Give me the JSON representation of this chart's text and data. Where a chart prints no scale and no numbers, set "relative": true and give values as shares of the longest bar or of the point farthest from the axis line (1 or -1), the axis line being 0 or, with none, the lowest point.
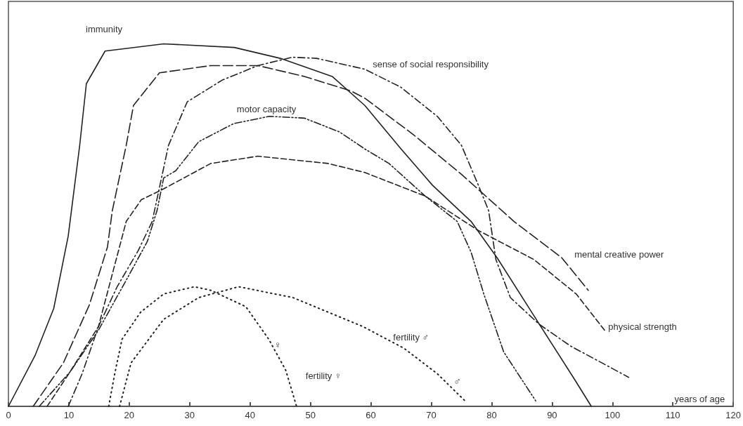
{
  "chart_data": {
    "type": "line",
    "relative": true,
    "xlabel": "years of age",
    "xlim": [
      0,
      120
    ],
    "xticks": [
      0,
      10,
      20,
      30,
      40,
      50,
      60,
      70,
      80,
      90,
      100,
      110,
      120
    ],
    "grid": false,
    "legend": false,
    "marker": "none",
    "annotations": [
      "♀",
      "♂"
    ],
    "series": [
      {
        "name": "immunity",
        "color": "#222222",
        "line_style": "solid",
        "x": [
          0,
          4.4,
          7.5,
          9.9,
          11.8,
          12.9,
          16,
          25.7,
          37.4,
          45,
          53.6,
          59,
          65,
          70.2,
          76.6,
          80.9,
          87,
          93.7,
          96.5
        ],
        "values": [
          0,
          0.14,
          0.27,
          0.47,
          0.72,
          0.89,
          0.98,
          1,
          0.99,
          0.96,
          0.91,
          0.83,
          0.71,
          0.61,
          0.51,
          0.41,
          0.25,
          0.075,
          0
        ]
      },
      {
        "name": "sense of social responsibility",
        "color": "#222222",
        "line_style": "dashed",
        "x": [
          9.9,
          12.2,
          14.9,
          18,
          21.5,
          23.8,
          26.5,
          29.6,
          35.4,
          41.3,
          47,
          51,
          59,
          65,
          71,
          75,
          77.8,
          79.5,
          80.7,
          83.1,
          87.9,
          93.1,
          102.7
        ],
        "values": [
          0,
          0.09,
          0.22,
          0.33,
          0.43,
          0.51,
          0.72,
          0.84,
          0.9,
          0.94,
          0.963,
          0.96,
          0.93,
          0.88,
          0.8,
          0.72,
          0.61,
          0.54,
          0.405,
          0.3,
          0.226,
          0.166,
          0.08
        ]
      },
      {
        "name": "motor capacity",
        "color": "#222222",
        "line_style": "dashed",
        "x": [
          5.1,
          10.2,
          14.9,
          19.9,
          23,
          24.6,
          25.7,
          27.7,
          31.5,
          37.3,
          43.2,
          49,
          54.8,
          59,
          63,
          69,
          74.3,
          76.6,
          78.7,
          82,
          87.3
        ],
        "values": [
          0,
          0.095,
          0.21,
          0.36,
          0.455,
          0.54,
          0.63,
          0.65,
          0.73,
          0.78,
          0.8,
          0.795,
          0.757,
          0.71,
          0.67,
          0.58,
          0.51,
          0.425,
          0.31,
          0.15,
          0.015
        ]
      },
      {
        "name": "mental creative power",
        "color": "#222222",
        "line_style": "dashed",
        "x": [
          4.1,
          9.1,
          13.4,
          16.4,
          17.2,
          19.5,
          20.7,
          25,
          33.5,
          41.3,
          49,
          56.7,
          59,
          67,
          75,
          83.7,
          91.6,
          96
        ],
        "values": [
          0,
          0.12,
          0.28,
          0.44,
          0.54,
          0.72,
          0.83,
          0.92,
          0.94,
          0.94,
          0.91,
          0.87,
          0.85,
          0.75,
          0.64,
          0.51,
          0.41,
          0.32
        ]
      },
      {
        "name": "physical strength",
        "color": "#222222",
        "line_style": "dashed",
        "x": [
          6.4,
          10,
          14.9,
          19.5,
          22,
          25.7,
          33.5,
          41.3,
          52.9,
          59,
          69,
          77.8,
          87,
          94,
          98.7
        ],
        "values": [
          0,
          0.09,
          0.22,
          0.51,
          0.57,
          0.6,
          0.67,
          0.69,
          0.67,
          0.645,
          0.58,
          0.485,
          0.405,
          0.31,
          0.21
        ]
      },
      {
        "name": "fertility ♂",
        "color": "#222222",
        "line_style": "dotted",
        "x": [
          18.4,
          20.3,
          25.7,
          31.5,
          38.1,
          47.1,
          58.7,
          65.5,
          71,
          75.9
        ],
        "values": [
          0,
          0.12,
          0.24,
          0.3,
          0.33,
          0.3,
          0.22,
          0.16,
          0.09,
          0.01
        ]
      },
      {
        "name": "fertility ♀",
        "color": "#222222",
        "line_style": "dotted",
        "x": [
          16.6,
          17.6,
          18.8,
          21.9,
          25.7,
          30.8,
          33.5,
          39.3,
          43.1,
          45.9,
          47.7
        ],
        "values": [
          0,
          0.09,
          0.185,
          0.26,
          0.31,
          0.33,
          0.32,
          0.275,
          0.185,
          0.1,
          0
        ]
      }
    ]
  }
}
